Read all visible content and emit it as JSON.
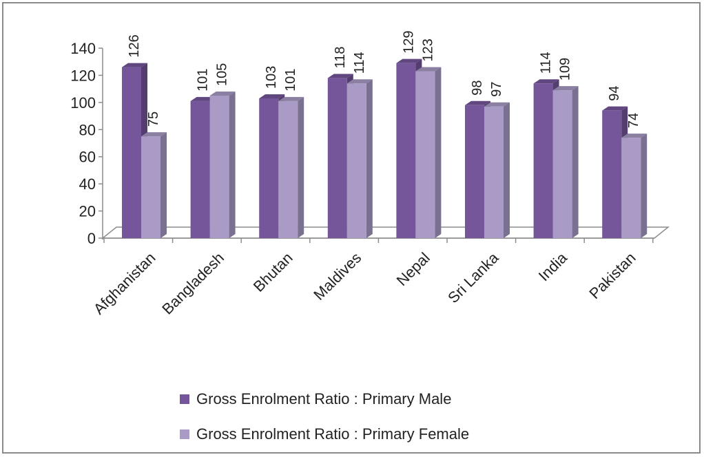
{
  "chart_data": {
    "type": "bar",
    "title": "",
    "xlabel": "",
    "ylabel": "",
    "categories": [
      "Afghanistan",
      "Bangladesh",
      "Bhutan",
      "Maldives",
      "Nepal",
      "Sri Lanka",
      "India",
      "Pakistan"
    ],
    "series": [
      {
        "name": "Gross Enrolment Ratio : Primary Male",
        "values": [
          126,
          101,
          103,
          118,
          129,
          98,
          114,
          94
        ],
        "color": "#75569b"
      },
      {
        "name": "Gross Enrolment Ratio : Primary Female",
        "values": [
          75,
          105,
          101,
          114,
          123,
          97,
          109,
          74
        ],
        "color": "#a99bc6"
      }
    ],
    "ylim": [
      0,
      140
    ],
    "yticks": [
      0,
      20,
      40,
      60,
      80,
      100,
      120,
      140
    ],
    "grid": false,
    "legend_position": "bottom",
    "style": "3d-clustered-column"
  }
}
